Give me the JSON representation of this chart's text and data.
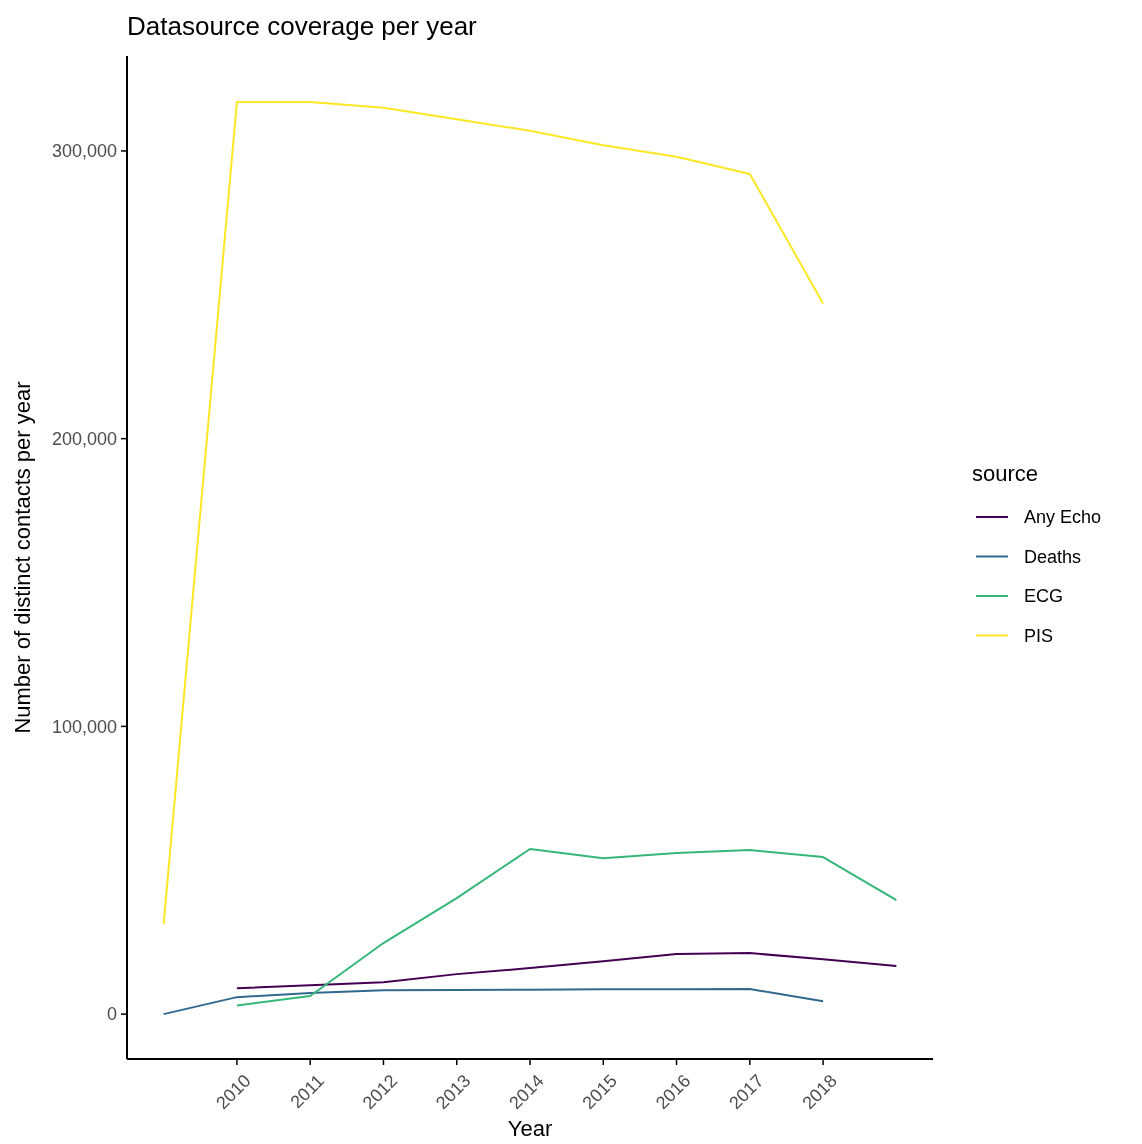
{
  "chart_data": {
    "type": "line",
    "title": "Datasource coverage per year",
    "xlabel": "Year",
    "ylabel": "Number of distinct contacts per year",
    "legend_title": "source",
    "legend": "right",
    "grid": false,
    "xlim": [
      2008.5,
      2019.5
    ],
    "xticks": [
      2010,
      2011,
      2012,
      2013,
      2014,
      2015,
      2016,
      2017,
      2018
    ],
    "ylim": [
      -15600,
      333000
    ],
    "yticks": [
      0,
      {
        "value": 100000,
        "label": "100,000"
      },
      {
        "value": 200000,
        "label": "200,000"
      },
      {
        "value": 300000,
        "label": "300,000"
      }
    ],
    "series": [
      {
        "name": "Any Echo",
        "color": "#440154",
        "x": [
          2010,
          2011,
          2012,
          2013,
          2014,
          2015,
          2016,
          2017,
          2018,
          2019
        ],
        "values": [
          9000,
          10000,
          11100,
          13900,
          16000,
          18400,
          20900,
          21200,
          19100,
          16700
        ]
      },
      {
        "name": "Deaths",
        "color": "#31688e",
        "x": [
          2009,
          2010,
          2011,
          2012,
          2013,
          2014,
          2015,
          2016,
          2017,
          2018
        ],
        "values": [
          0,
          5900,
          7300,
          8300,
          8400,
          8500,
          8600,
          8600,
          8700,
          4500
        ]
      },
      {
        "name": "ECG",
        "color": "#35b779",
        "x": [
          2010,
          2011,
          2012,
          2013,
          2014,
          2015,
          2016,
          2017,
          2018,
          2019
        ],
        "values": [
          3000,
          6300,
          24700,
          40300,
          57400,
          54200,
          56000,
          57000,
          54600,
          39600
        ]
      },
      {
        "name": "PIS",
        "color": "#fde725",
        "x": [
          2009,
          2010,
          2011,
          2012,
          2013,
          2014,
          2015,
          2016,
          2017,
          2018
        ],
        "values": [
          31300,
          317000,
          317000,
          315000,
          311000,
          307000,
          302000,
          298000,
          292000,
          247000
        ]
      }
    ]
  }
}
